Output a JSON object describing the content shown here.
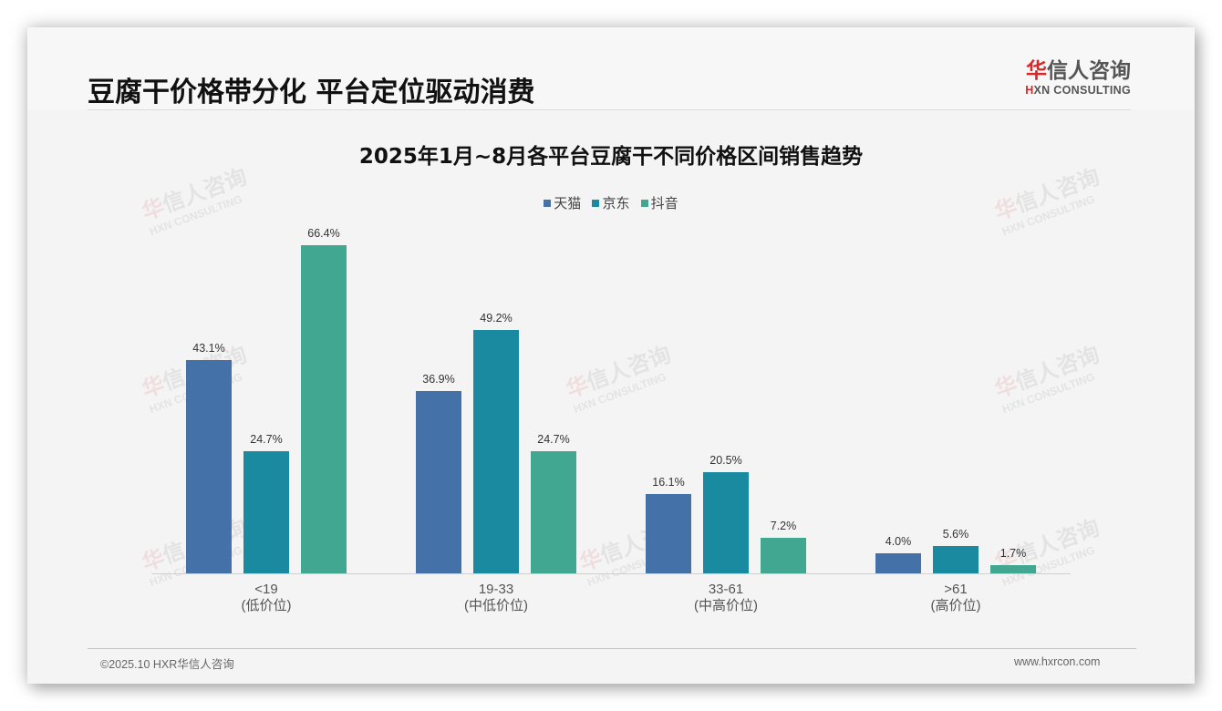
{
  "header": {
    "title": "豆腐干价格带分化 平台定位驱动消费",
    "logo_cn_first": "华",
    "logo_cn_rest": "信人咨询",
    "logo_en_first": "H",
    "logo_en_rest": "XN CONSULTING"
  },
  "watermark": {
    "cn_first": "华",
    "cn_rest": "信人咨询",
    "en": "HXN CONSULTING"
  },
  "footer": {
    "copyright": "©2025.10 HXR华信人咨询",
    "website": "www.hxrcon.com"
  },
  "colors": {
    "tmall": "#4472a8",
    "jd": "#1a8aa0",
    "douyin": "#42a790",
    "brand_red": "#d42a2a"
  },
  "chart_data": {
    "type": "bar",
    "title": "2025年1月~8月各平台豆腐干不同价格区间销售趋势",
    "xlabel": "",
    "ylabel": "",
    "ylim": [
      0,
      70
    ],
    "grid": false,
    "legend_position": "top",
    "categories": [
      "<19\n(低价位)",
      "19-33\n(中低价位)",
      "33-61\n(中高价位)",
      ">61\n(高价位)"
    ],
    "category_labels": [
      {
        "range": "<19",
        "tier": "(低价位)"
      },
      {
        "range": "19-33",
        "tier": "(中低价位)"
      },
      {
        "range": "33-61",
        "tier": "(中高价位)"
      },
      {
        "range": ">61",
        "tier": "(高价位)"
      }
    ],
    "series": [
      {
        "name": "天猫",
        "color": "#4472a8",
        "values": [
          43.1,
          36.9,
          16.1,
          4.0
        ],
        "labels": [
          "43.1%",
          "36.9%",
          "16.1%",
          "4.0%"
        ]
      },
      {
        "name": "京东",
        "color": "#1a8aa0",
        "values": [
          24.7,
          49.2,
          20.5,
          5.6
        ],
        "labels": [
          "24.7%",
          "49.2%",
          "20.5%",
          "5.6%"
        ]
      },
      {
        "name": "抖音",
        "color": "#42a790",
        "values": [
          66.4,
          24.7,
          7.2,
          1.7
        ],
        "labels": [
          "66.4%",
          "24.7%",
          "7.2%",
          "1.7%"
        ]
      }
    ]
  }
}
